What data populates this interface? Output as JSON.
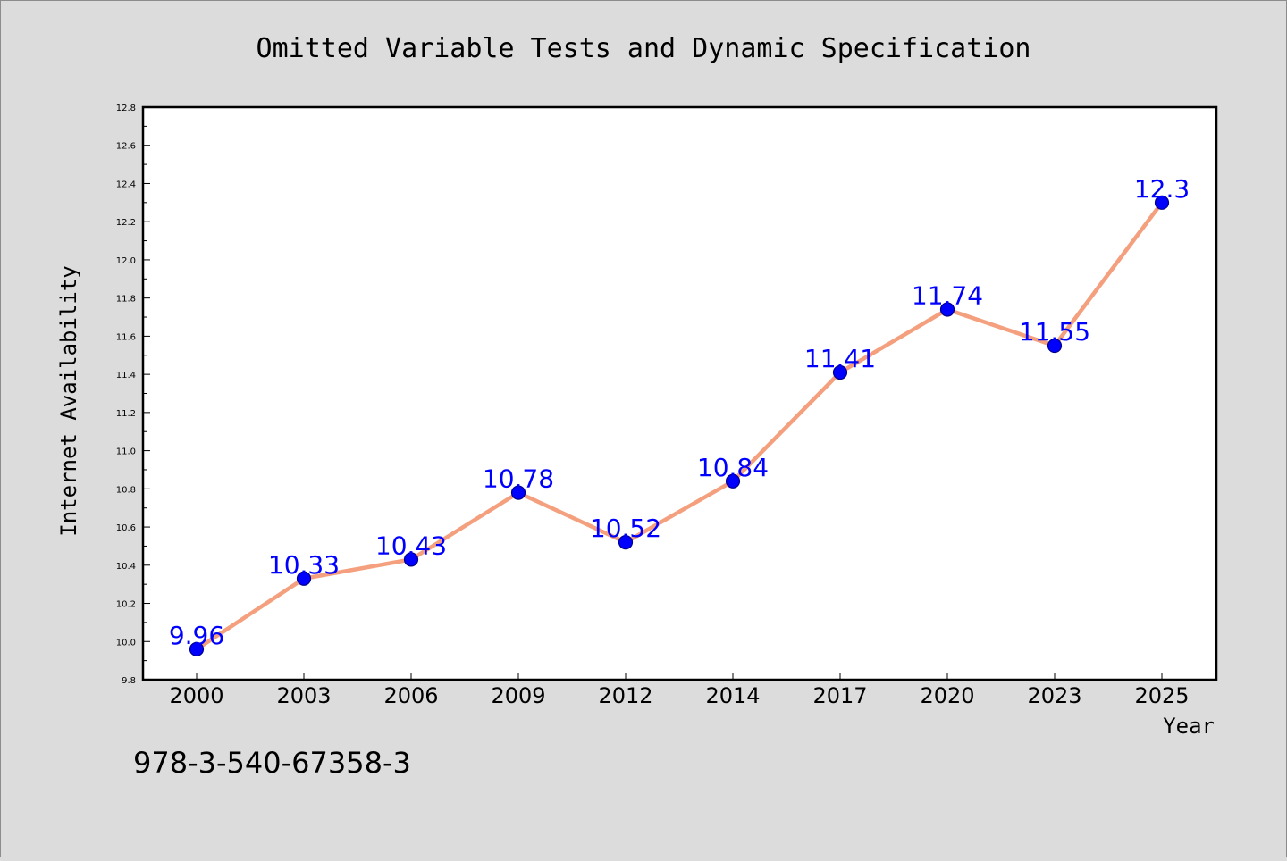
{
  "chart_data": {
    "type": "line",
    "title": "Omitted Variable Tests and Dynamic Specification",
    "xlabel": "Year",
    "ylabel": "Internet Availability",
    "categories": [
      "2000",
      "2003",
      "2006",
      "2009",
      "2012",
      "2014",
      "2017",
      "2020",
      "2023",
      "2025"
    ],
    "series": [
      {
        "values": [
          9.96,
          10.33,
          10.43,
          10.78,
          10.52,
          10.84,
          11.41,
          11.74,
          11.55,
          12.3
        ],
        "data_labels": [
          "9.96",
          "10.33",
          "10.43",
          "10.78",
          "10.52",
          "10.84",
          "11.41",
          "11.74",
          "11.55",
          "12.3"
        ]
      }
    ],
    "ylim": [
      9.8,
      12.8
    ],
    "yticks": [
      "9.8",
      "10.0",
      "10.2",
      "10.4",
      "10.6",
      "10.8",
      "11.0",
      "11.2",
      "11.4",
      "11.6",
      "11.8",
      "12.0",
      "12.2",
      "12.4",
      "12.6",
      "12.8"
    ],
    "grid": false,
    "legend": "none",
    "colors": {
      "line": "#f4a07e",
      "marker": "#0000ff",
      "marker_edge": "#00008b",
      "data_label": "#0000ff",
      "background": "#dcdcdc",
      "plot_background": "#ffffff"
    }
  },
  "footnote": "978-3-540-67358-3"
}
